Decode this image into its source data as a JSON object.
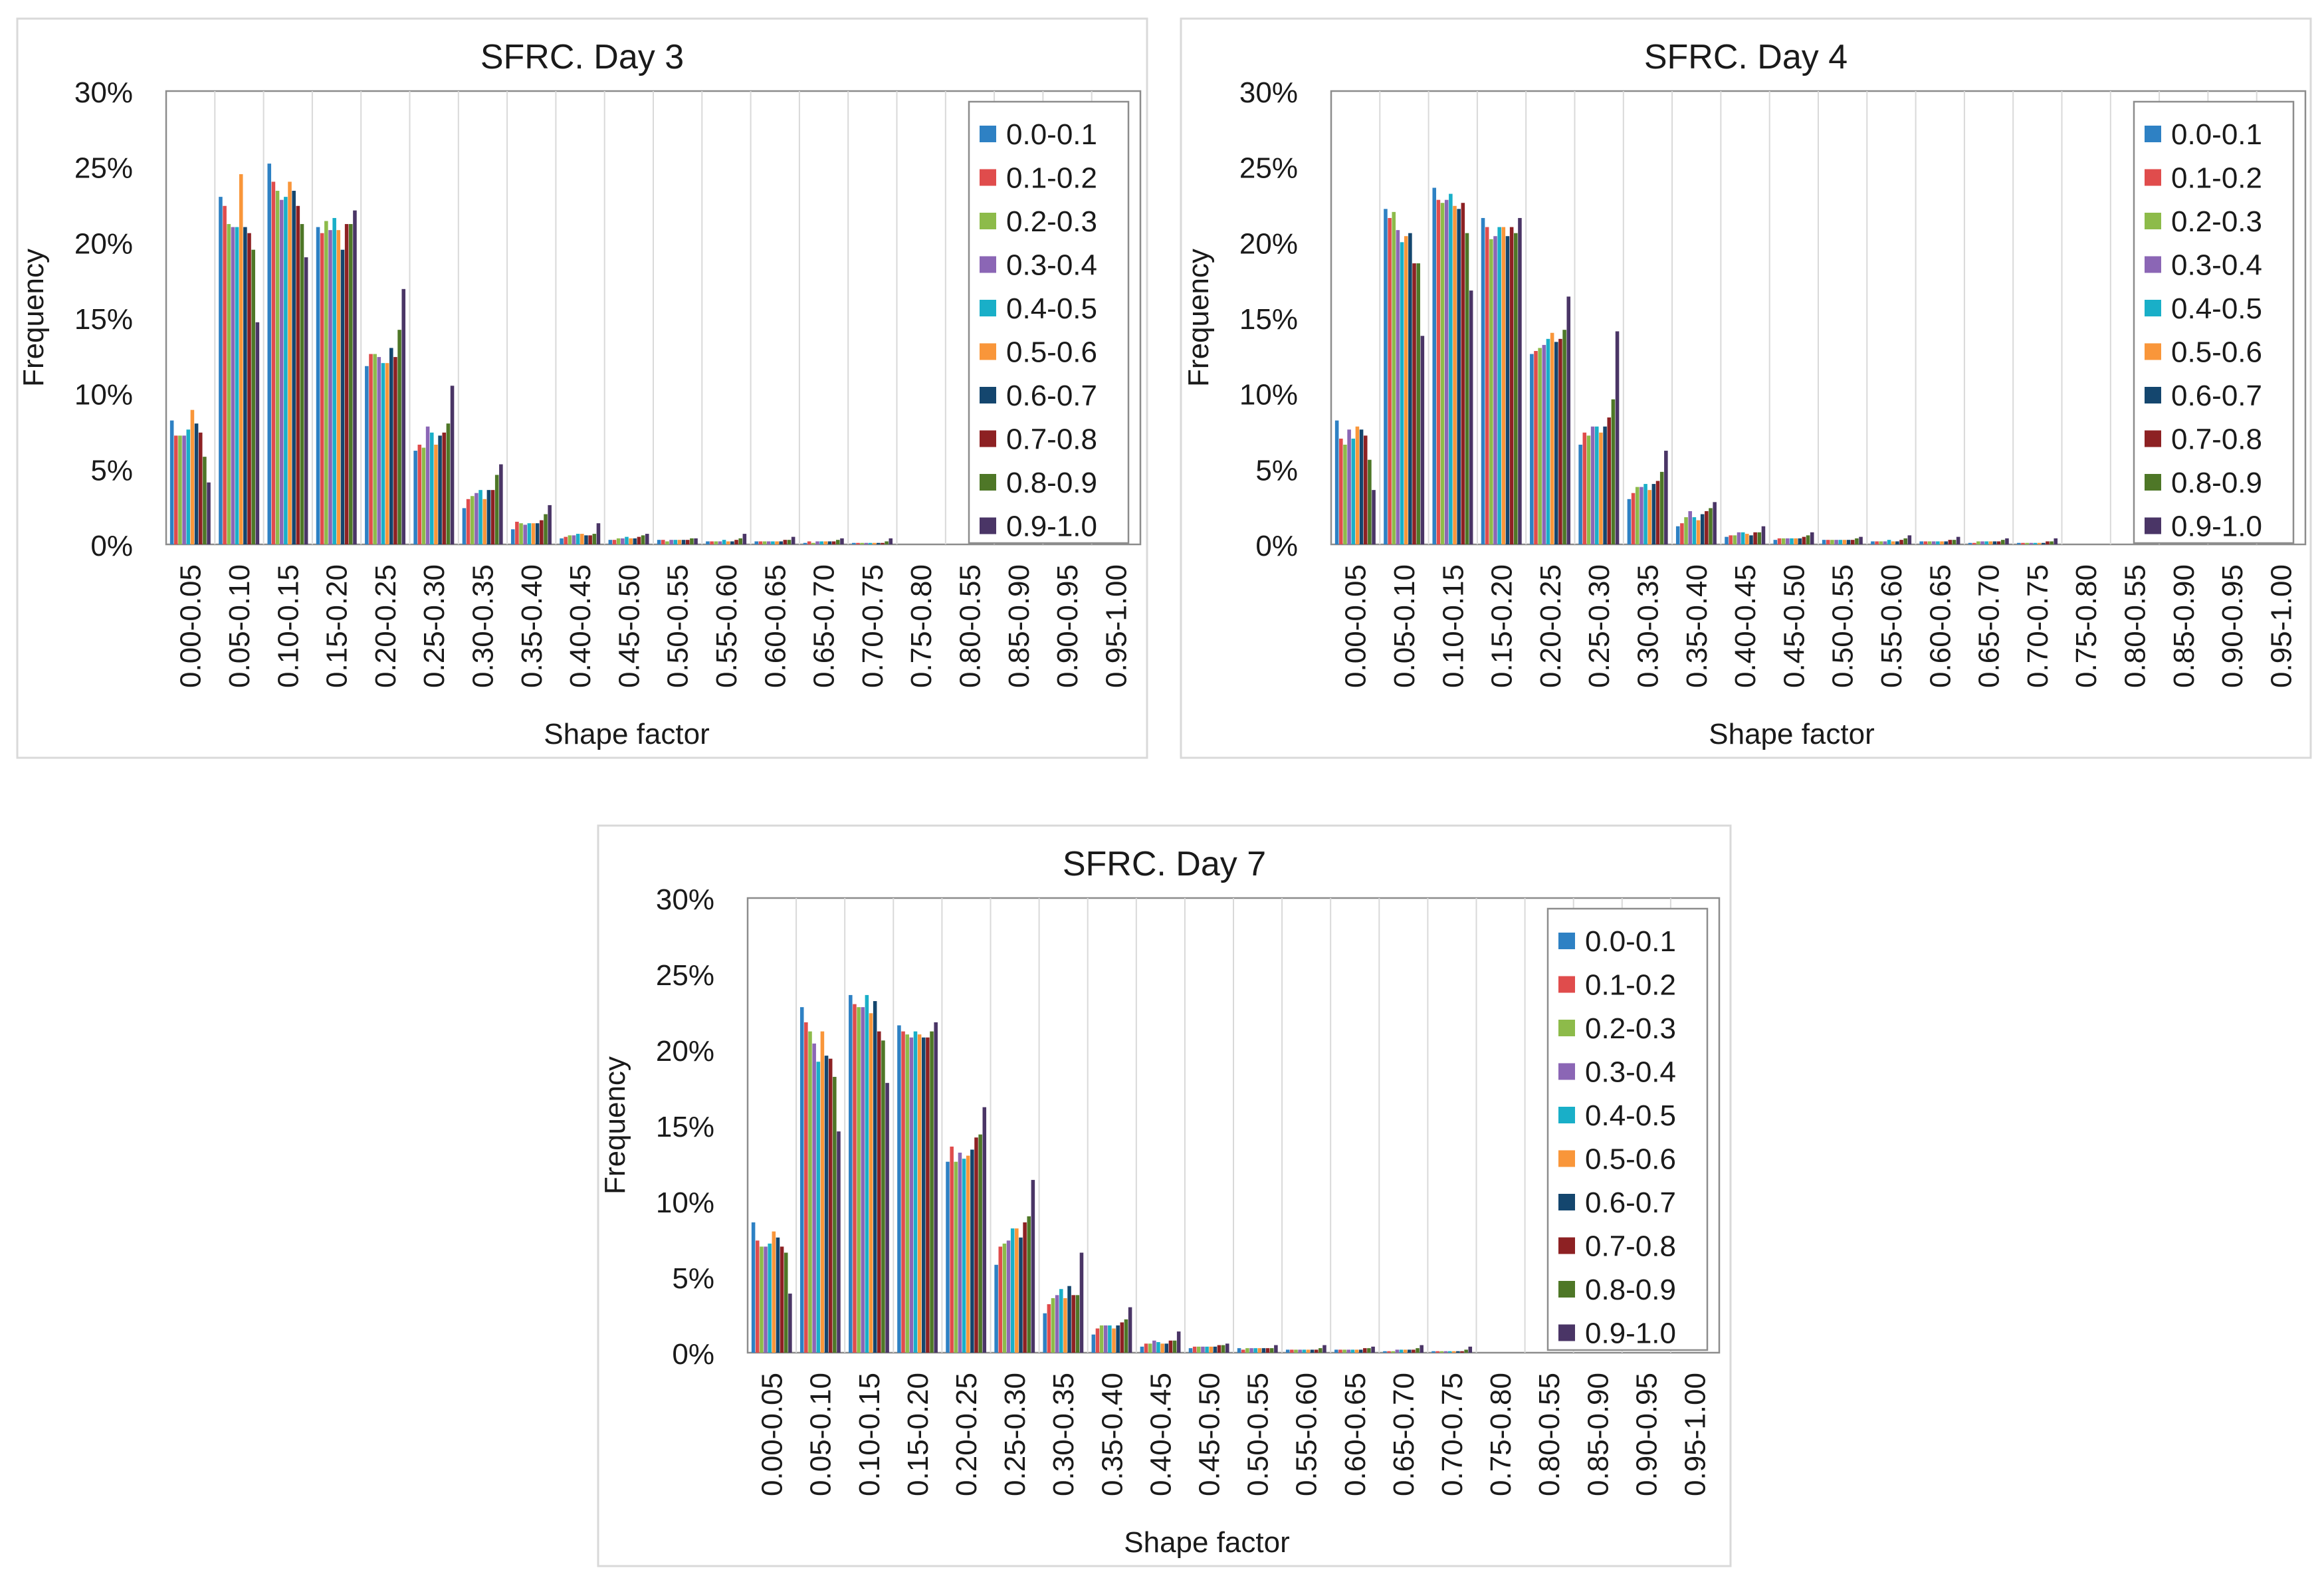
{
  "figure": {
    "description_text": ""
  },
  "colors": [
    "#2e81c4",
    "#e04c4c",
    "#8dbb4a",
    "#8b66b5",
    "#19afc8",
    "#f9963a",
    "#14466e",
    "#8d2123",
    "#4e7727",
    "#4a3566"
  ],
  "chart_data": [
    {
      "type": "bar",
      "title": "SFRC. Day 3",
      "xlabel": "Shape factor",
      "ylabel": "Frequency",
      "ylim": [
        0,
        30
      ],
      "yticks": [
        "0%",
        "5%",
        "10%",
        "15%",
        "20%",
        "25%",
        "30%"
      ],
      "grid": false,
      "legend_position": "top-right",
      "categories": [
        "0.00-0.05",
        "0.05-0.10",
        "0.10-0.15",
        "0.15-0.20",
        "0.20-0.25",
        "0.25-0.30",
        "0.30-0.35",
        "0.35-0.40",
        "0.40-0.45",
        "0.45-0.50",
        "0.50-0.55",
        "0.55-0.60",
        "0.60-0.65",
        "0.65-0.70",
        "0.70-0.75",
        "0.75-0.80",
        "0.80-0.55",
        "0.85-0.90",
        "0.90-0.95",
        "0.95-1.00"
      ],
      "series": [
        {
          "name": "0.0-0.1",
          "values": [
            8.2,
            23.0,
            25.2,
            21.0,
            11.8,
            6.2,
            2.4,
            1.0,
            0.4,
            0.3,
            0.3,
            0.2,
            0.2,
            0.1,
            0.1,
            0,
            0,
            0,
            0,
            0
          ]
        },
        {
          "name": "0.1-0.2",
          "values": [
            7.2,
            22.4,
            24.0,
            20.6,
            12.6,
            6.6,
            3.0,
            1.5,
            0.5,
            0.3,
            0.3,
            0.2,
            0.2,
            0.2,
            0.1,
            0,
            0,
            0,
            0,
            0
          ]
        },
        {
          "name": "0.2-0.3",
          "values": [
            7.2,
            21.2,
            23.4,
            21.4,
            12.6,
            6.4,
            3.2,
            1.4,
            0.6,
            0.4,
            0.2,
            0.2,
            0.2,
            0.1,
            0.1,
            0,
            0,
            0,
            0,
            0
          ]
        },
        {
          "name": "0.3-0.4",
          "values": [
            7.2,
            21.0,
            22.8,
            20.8,
            12.4,
            7.8,
            3.4,
            1.3,
            0.6,
            0.4,
            0.3,
            0.2,
            0.2,
            0.2,
            0.1,
            0,
            0,
            0,
            0,
            0
          ]
        },
        {
          "name": "0.4-0.5",
          "values": [
            7.6,
            21.0,
            23.0,
            21.6,
            12.0,
            7.4,
            3.6,
            1.4,
            0.7,
            0.5,
            0.3,
            0.3,
            0.2,
            0.2,
            0.1,
            0,
            0,
            0,
            0,
            0
          ]
        },
        {
          "name": "0.5-0.6",
          "values": [
            8.9,
            24.5,
            24.0,
            20.8,
            12.0,
            6.6,
            3.0,
            1.4,
            0.7,
            0.4,
            0.3,
            0.2,
            0.2,
            0.2,
            0.1,
            0,
            0,
            0,
            0,
            0
          ]
        },
        {
          "name": "0.6-0.7",
          "values": [
            8.0,
            21.0,
            23.4,
            19.5,
            13.0,
            7.2,
            3.6,
            1.4,
            0.6,
            0.4,
            0.3,
            0.2,
            0.2,
            0.2,
            0.1,
            0,
            0,
            0,
            0,
            0
          ]
        },
        {
          "name": "0.7-0.8",
          "values": [
            7.4,
            20.6,
            22.4,
            21.2,
            12.4,
            7.4,
            3.6,
            1.6,
            0.6,
            0.5,
            0.3,
            0.3,
            0.3,
            0.2,
            0.1,
            0,
            0,
            0,
            0,
            0
          ]
        },
        {
          "name": "0.8-0.9",
          "values": [
            5.8,
            19.5,
            21.2,
            21.2,
            14.2,
            8.0,
            4.6,
            2.0,
            0.7,
            0.6,
            0.4,
            0.4,
            0.3,
            0.3,
            0.2,
            0,
            0,
            0,
            0,
            0
          ]
        },
        {
          "name": "0.9-1.0",
          "values": [
            4.1,
            14.7,
            19.0,
            22.1,
            16.9,
            10.5,
            5.3,
            2.6,
            1.4,
            0.7,
            0.4,
            0.7,
            0.5,
            0.4,
            0.4,
            0,
            0,
            0,
            0,
            0
          ]
        }
      ]
    },
    {
      "type": "bar",
      "title": "SFRC. Day 4",
      "xlabel": "Shape factor",
      "ylabel": "Frequency",
      "ylim": [
        0,
        30
      ],
      "yticks": [
        "0%",
        "5%",
        "10%",
        "15%",
        "20%",
        "25%",
        "30%"
      ],
      "grid": false,
      "legend_position": "top-right",
      "categories": [
        "0.00-0.05",
        "0.05-0.10",
        "0.10-0.15",
        "0.15-0.20",
        "0.20-0.25",
        "0.25-0.30",
        "0.30-0.35",
        "0.35-0.40",
        "0.40-0.45",
        "0.45-0.50",
        "0.50-0.55",
        "0.55-0.60",
        "0.60-0.65",
        "0.65-0.70",
        "0.70-0.75",
        "0.75-0.80",
        "0.80-0.55",
        "0.85-0.90",
        "0.90-0.95",
        "0.95-1.00"
      ],
      "series": [
        {
          "name": "0.0-0.1",
          "values": [
            8.2,
            22.2,
            23.6,
            21.6,
            12.6,
            6.6,
            3.0,
            1.2,
            0.5,
            0.3,
            0.3,
            0.2,
            0.2,
            0.1,
            0.1,
            0,
            0,
            0,
            0,
            0
          ]
        },
        {
          "name": "0.1-0.2",
          "values": [
            7.0,
            21.6,
            22.8,
            21.0,
            12.8,
            7.4,
            3.4,
            1.4,
            0.6,
            0.4,
            0.3,
            0.2,
            0.2,
            0.1,
            0.1,
            0,
            0,
            0,
            0,
            0
          ]
        },
        {
          "name": "0.2-0.3",
          "values": [
            6.6,
            22.0,
            22.6,
            20.2,
            13.0,
            7.2,
            3.8,
            1.8,
            0.6,
            0.4,
            0.3,
            0.2,
            0.2,
            0.2,
            0.1,
            0,
            0,
            0,
            0,
            0
          ]
        },
        {
          "name": "0.3-0.4",
          "values": [
            7.6,
            20.8,
            22.8,
            20.4,
            13.2,
            7.8,
            3.8,
            2.2,
            0.8,
            0.4,
            0.3,
            0.2,
            0.2,
            0.2,
            0.1,
            0,
            0,
            0,
            0,
            0
          ]
        },
        {
          "name": "0.4-0.5",
          "values": [
            7.0,
            20.0,
            23.2,
            21.0,
            13.6,
            7.8,
            4.0,
            1.8,
            0.8,
            0.4,
            0.3,
            0.3,
            0.2,
            0.2,
            0.1,
            0,
            0,
            0,
            0,
            0
          ]
        },
        {
          "name": "0.5-0.6",
          "values": [
            7.8,
            20.4,
            22.4,
            21.0,
            14.0,
            7.4,
            3.6,
            1.6,
            0.7,
            0.4,
            0.3,
            0.2,
            0.2,
            0.2,
            0.1,
            0,
            0,
            0,
            0,
            0
          ]
        },
        {
          "name": "0.6-0.7",
          "values": [
            7.6,
            20.6,
            22.2,
            20.4,
            13.4,
            7.8,
            4.0,
            2.0,
            0.6,
            0.4,
            0.3,
            0.2,
            0.2,
            0.2,
            0.1,
            0,
            0,
            0,
            0,
            0
          ]
        },
        {
          "name": "0.7-0.8",
          "values": [
            7.2,
            18.6,
            22.6,
            21.0,
            13.6,
            8.4,
            4.2,
            2.2,
            0.8,
            0.5,
            0.3,
            0.3,
            0.3,
            0.2,
            0.2,
            0,
            0,
            0,
            0,
            0
          ]
        },
        {
          "name": "0.8-0.9",
          "values": [
            5.6,
            18.6,
            20.6,
            20.6,
            14.2,
            9.6,
            4.8,
            2.4,
            0.8,
            0.6,
            0.4,
            0.4,
            0.3,
            0.3,
            0.2,
            0,
            0,
            0,
            0,
            0
          ]
        },
        {
          "name": "0.9-1.0",
          "values": [
            3.6,
            13.8,
            16.8,
            21.6,
            16.4,
            14.1,
            6.2,
            2.8,
            1.2,
            0.8,
            0.5,
            0.6,
            0.5,
            0.4,
            0.4,
            0,
            0,
            0,
            0,
            0
          ]
        }
      ]
    },
    {
      "type": "bar",
      "title": "SFRC. Day 7",
      "xlabel": "Shape factor",
      "ylabel": "Frequency",
      "ylim": [
        0,
        30
      ],
      "yticks": [
        "0%",
        "5%",
        "10%",
        "15%",
        "20%",
        "25%",
        "30%"
      ],
      "grid": false,
      "legend_position": "top-right",
      "categories": [
        "0.00-0.05",
        "0.05-0.10",
        "0.10-0.15",
        "0.15-0.20",
        "0.20-0.25",
        "0.25-0.30",
        "0.30-0.35",
        "0.35-0.40",
        "0.40-0.45",
        "0.45-0.50",
        "0.50-0.55",
        "0.55-0.60",
        "0.60-0.65",
        "0.65-0.70",
        "0.70-0.75",
        "0.75-0.80",
        "0.80-0.55",
        "0.85-0.90",
        "0.90-0.95",
        "0.95-1.00"
      ],
      "series": [
        {
          "name": "0.0-0.1",
          "values": [
            8.6,
            22.8,
            23.6,
            21.6,
            12.6,
            5.8,
            2.6,
            1.2,
            0.4,
            0.3,
            0.3,
            0.2,
            0.2,
            0.1,
            0.1,
            0,
            0,
            0,
            0,
            0
          ]
        },
        {
          "name": "0.1-0.2",
          "values": [
            7.4,
            21.8,
            23.0,
            21.2,
            13.6,
            7.0,
            3.2,
            1.6,
            0.6,
            0.4,
            0.2,
            0.2,
            0.2,
            0.1,
            0.1,
            0,
            0,
            0,
            0,
            0
          ]
        },
        {
          "name": "0.2-0.3",
          "values": [
            7.0,
            21.2,
            22.8,
            21.0,
            12.6,
            7.2,
            3.6,
            1.8,
            0.6,
            0.4,
            0.3,
            0.2,
            0.2,
            0.1,
            0.1,
            0,
            0,
            0,
            0,
            0
          ]
        },
        {
          "name": "0.3-0.4",
          "values": [
            7.0,
            20.4,
            22.8,
            20.8,
            13.2,
            7.4,
            3.8,
            1.8,
            0.8,
            0.4,
            0.3,
            0.2,
            0.2,
            0.2,
            0.1,
            0,
            0,
            0,
            0,
            0
          ]
        },
        {
          "name": "0.4-0.5",
          "values": [
            7.2,
            19.2,
            23.6,
            21.2,
            12.8,
            8.2,
            4.2,
            1.8,
            0.7,
            0.4,
            0.3,
            0.2,
            0.2,
            0.2,
            0.1,
            0,
            0,
            0,
            0,
            0
          ]
        },
        {
          "name": "0.5-0.6",
          "values": [
            8.0,
            21.2,
            22.4,
            21.0,
            13.0,
            8.2,
            3.6,
            1.6,
            0.6,
            0.4,
            0.3,
            0.2,
            0.2,
            0.2,
            0.1,
            0,
            0,
            0,
            0,
            0
          ]
        },
        {
          "name": "0.6-0.7",
          "values": [
            7.6,
            19.6,
            23.2,
            20.8,
            13.4,
            7.6,
            4.4,
            1.8,
            0.6,
            0.4,
            0.3,
            0.2,
            0.2,
            0.2,
            0.1,
            0,
            0,
            0,
            0,
            0
          ]
        },
        {
          "name": "0.7-0.8",
          "values": [
            7.0,
            19.4,
            21.2,
            20.8,
            14.2,
            8.6,
            3.8,
            2.0,
            0.8,
            0.5,
            0.3,
            0.2,
            0.3,
            0.2,
            0.1,
            0,
            0,
            0,
            0,
            0
          ]
        },
        {
          "name": "0.8-0.9",
          "values": [
            6.6,
            18.2,
            20.6,
            21.2,
            14.4,
            9.0,
            3.8,
            2.2,
            0.8,
            0.5,
            0.3,
            0.3,
            0.3,
            0.3,
            0.2,
            0,
            0,
            0,
            0,
            0
          ]
        },
        {
          "name": "0.9-1.0",
          "values": [
            3.9,
            14.6,
            17.8,
            21.8,
            16.2,
            11.4,
            6.6,
            3.0,
            1.4,
            0.6,
            0.5,
            0.5,
            0.4,
            0.5,
            0.4,
            0,
            0,
            0,
            0,
            0
          ]
        }
      ]
    }
  ]
}
